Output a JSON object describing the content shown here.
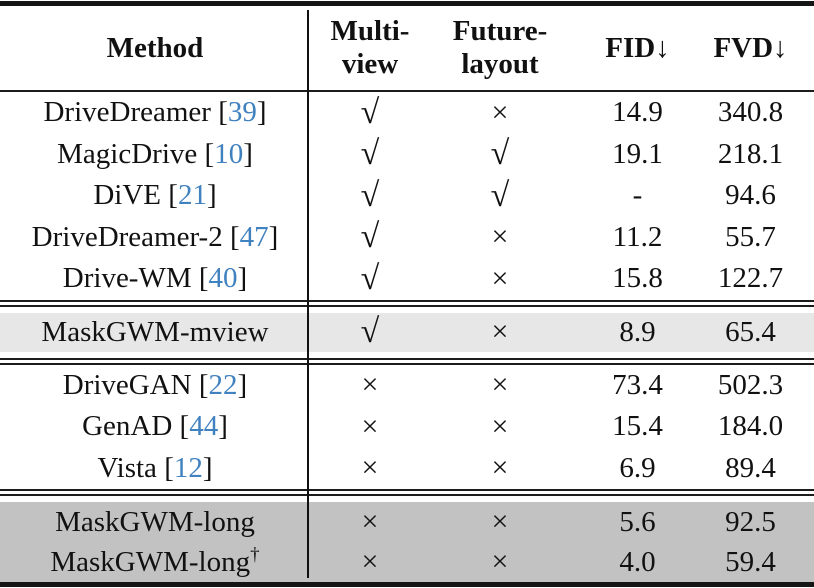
{
  "colors": {
    "citation_link": "#4081bf",
    "highlight_light": "#e7e7e7",
    "highlight_dark": "#c2c2c2",
    "rule": "#151515"
  },
  "header": {
    "method": "Method",
    "multi_view_line1": "Multi-",
    "multi_view_line2": "view",
    "future_layout_line1": "Future-",
    "future_layout_line2": "layout",
    "fid": "FID",
    "fvd": "FVD",
    "down_arrow": "↓"
  },
  "glyphs": {
    "check": "√",
    "cross": "×"
  },
  "sections": [
    {
      "name": "multiview-methods",
      "rows": [
        {
          "name": "DriveDreamer",
          "cite": "39",
          "multi_view": "√",
          "future_layout": "×",
          "fid": "14.9",
          "fvd": "340.8"
        },
        {
          "name": "MagicDrive",
          "cite": "10",
          "multi_view": "√",
          "future_layout": "√",
          "fid": "19.1",
          "fvd": "218.1"
        },
        {
          "name": "DiVE",
          "cite": "21",
          "multi_view": "√",
          "future_layout": "√",
          "fid": "-",
          "fvd": "94.6"
        },
        {
          "name": "DriveDreamer-2",
          "cite": "47",
          "multi_view": "√",
          "future_layout": "×",
          "fid": "11.2",
          "fvd": "55.7"
        },
        {
          "name": "Drive-WM",
          "cite": "40",
          "multi_view": "√",
          "future_layout": "×",
          "fid": "15.8",
          "fvd": "122.7"
        }
      ]
    },
    {
      "name": "maskgwm-mview-highlight",
      "highlight": "#e7e7e7",
      "rows": [
        {
          "name": "MaskGWM-mview",
          "multi_view": "√",
          "future_layout": "×",
          "fid": "8.9",
          "fvd": "65.4"
        }
      ]
    },
    {
      "name": "frontview-methods",
      "rows": [
        {
          "name": "DriveGAN",
          "cite": "22",
          "multi_view": "×",
          "future_layout": "×",
          "fid": "73.4",
          "fvd": "502.3"
        },
        {
          "name": "GenAD",
          "cite": "44",
          "multi_view": "×",
          "future_layout": "×",
          "fid": "15.4",
          "fvd": "184.0"
        },
        {
          "name": "Vista",
          "cite": "12",
          "multi_view": "×",
          "future_layout": "×",
          "fid": "6.9",
          "fvd": "89.4"
        }
      ]
    },
    {
      "name": "maskgwm-long-highlight",
      "highlight": "#c2c2c2",
      "rows": [
        {
          "name": "MaskGWM-long",
          "multi_view": "×",
          "future_layout": "×",
          "fid": "5.6",
          "fvd": "92.5"
        },
        {
          "name": "MaskGWM-long",
          "superscript": "†",
          "multi_view": "×",
          "future_layout": "×",
          "fid": "4.0",
          "fvd": "59.4"
        }
      ]
    }
  ]
}
